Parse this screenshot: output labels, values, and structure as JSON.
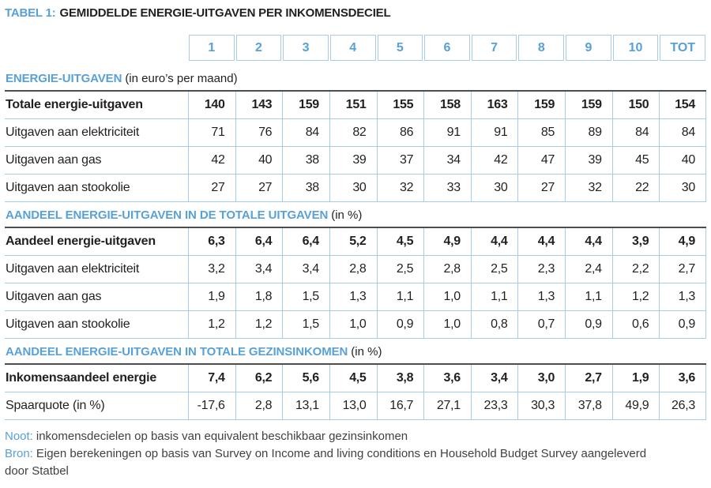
{
  "title": {
    "label": "TABEL 1:",
    "text": "GEMIDDELDE ENERGIE-UITGAVEN PER INKOMENSDECIEL"
  },
  "colors": {
    "accent_blue": "#58A1D8",
    "grid_line_blue": "#A6CCEA",
    "section_rule_dark": "#4D4D4F",
    "body_text": "#231F20"
  },
  "table": {
    "column_headers": [
      "1",
      "2",
      "3",
      "4",
      "5",
      "6",
      "7",
      "8",
      "9",
      "10",
      "TOT"
    ],
    "sections": [
      {
        "heading": "ENERGIE-UITGAVEN",
        "heading_suffix": "(in euro’s per maand)",
        "rows": [
          {
            "label": "Totale energie-uitgaven",
            "bold": true,
            "values": [
              "140",
              "143",
              "159",
              "151",
              "155",
              "158",
              "163",
              "159",
              "159",
              "150",
              "154"
            ]
          },
          {
            "label": "Uitgaven aan elektriciteit",
            "bold": false,
            "values": [
              "71",
              "76",
              "84",
              "82",
              "86",
              "91",
              "91",
              "85",
              "89",
              "84",
              "84"
            ]
          },
          {
            "label": "Uitgaven aan gas",
            "bold": false,
            "values": [
              "42",
              "40",
              "38",
              "39",
              "37",
              "34",
              "42",
              "47",
              "39",
              "45",
              "40"
            ]
          },
          {
            "label": "Uitgaven aan stookolie",
            "bold": false,
            "values": [
              "27",
              "27",
              "38",
              "30",
              "32",
              "33",
              "30",
              "27",
              "32",
              "22",
              "30"
            ]
          }
        ]
      },
      {
        "heading": "AANDEEL ENERGIE-UITGAVEN IN DE TOTALE UITGAVEN",
        "heading_suffix": "(in %)",
        "rows": [
          {
            "label": "Aandeel energie-uitgaven",
            "bold": true,
            "values": [
              "6,3",
              "6,4",
              "6,4",
              "5,2",
              "4,5",
              "4,9",
              "4,4",
              "4,4",
              "4,4",
              "3,9",
              "4,9"
            ]
          },
          {
            "label": "Uitgaven aan elektriciteit",
            "bold": false,
            "values": [
              "3,2",
              "3,4",
              "3,4",
              "2,8",
              "2,5",
              "2,8",
              "2,5",
              "2,3",
              "2,4",
              "2,2",
              "2,7"
            ]
          },
          {
            "label": "Uitgaven aan gas",
            "bold": false,
            "values": [
              "1,9",
              "1,8",
              "1,5",
              "1,3",
              "1,1",
              "1,0",
              "1,1",
              "1,3",
              "1,1",
              "1,2",
              "1,3"
            ]
          },
          {
            "label": "Uitgaven aan stookolie",
            "bold": false,
            "values": [
              "1,2",
              "1,2",
              "1,5",
              "1,0",
              "0,9",
              "1,0",
              "0,8",
              "0,7",
              "0,9",
              "0,6",
              "0,9"
            ]
          }
        ]
      },
      {
        "heading": "AANDEEL ENERGIE-UITGAVEN IN TOTALE GEZINSINKOMEN",
        "heading_suffix": "(in %)",
        "rows": [
          {
            "label": "Inkomensaandeel energie",
            "bold": true,
            "values": [
              "7,4",
              "6,2",
              "5,6",
              "4,5",
              "3,8",
              "3,6",
              "3,4",
              "3,0",
              "2,7",
              "1,9",
              "3,6"
            ]
          },
          {
            "label": "Spaarquote (in %)",
            "bold": false,
            "values": [
              "-17,6",
              "2,8",
              "13,1",
              "13,0",
              "16,7",
              "27,1",
              "23,3",
              "30,3",
              "37,8",
              "49,9",
              "26,3"
            ]
          }
        ]
      }
    ]
  },
  "footer": {
    "noot_label": "Noot:",
    "noot_text": "inkomensdecielen op basis van equivalent beschikbaar gezinsinkomen",
    "bron_label": "Bron:",
    "bron_text": "Eigen berekeningen op basis van Survey on Income and living conditions en Household Budget Survey aangeleverd door Statbel"
  }
}
